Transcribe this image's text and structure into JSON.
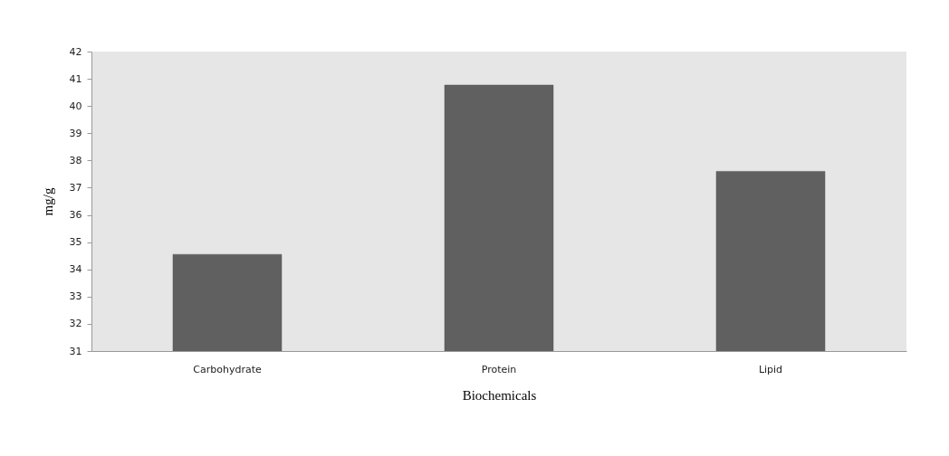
{
  "chart_data": {
    "type": "bar",
    "xlabel": "Biochemicals",
    "ylabel": "mg/g",
    "categories": [
      "Carbohydrate",
      "Protein",
      "Lipid"
    ],
    "values": [
      34.55,
      40.77,
      37.6
    ],
    "color": "#606060",
    "ylim": [
      31,
      42
    ],
    "yticks": [
      31,
      32,
      33,
      34,
      35,
      36,
      37,
      38,
      39,
      40,
      41,
      42
    ],
    "grid": false
  }
}
